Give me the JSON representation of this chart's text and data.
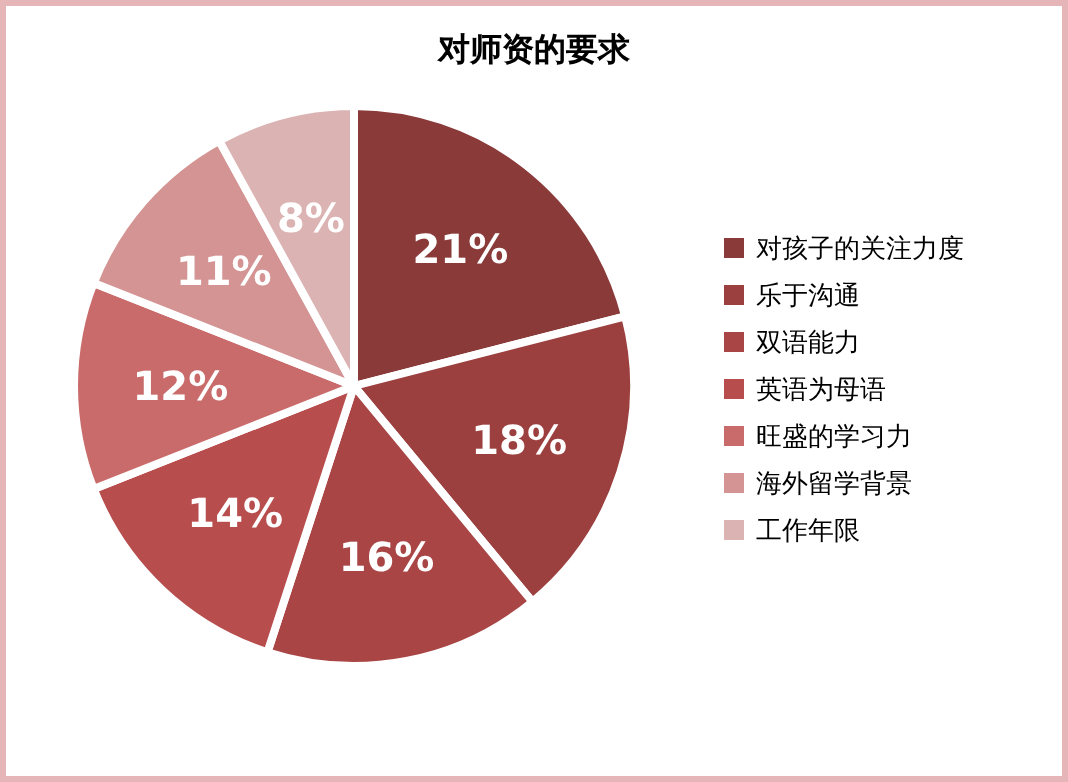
{
  "chart_data": {
    "type": "pie",
    "title": "对师资的要求",
    "categories": [
      "对孩子的关注力度",
      "乐于沟通",
      "双语能力",
      "英语为母语",
      "旺盛的学习力",
      "海外留学背景",
      "工作年限"
    ],
    "values": [
      21,
      18,
      16,
      14,
      12,
      11,
      8
    ],
    "value_labels": [
      "21%",
      "18%",
      "16%",
      "14%",
      "12%",
      "11%",
      "8%"
    ],
    "colors": [
      "#8b3a3a",
      "#9c3f3f",
      "#a94545",
      "#b84d4d",
      "#c96b6b",
      "#d49494",
      "#dcb3b3"
    ],
    "legend": "right"
  }
}
